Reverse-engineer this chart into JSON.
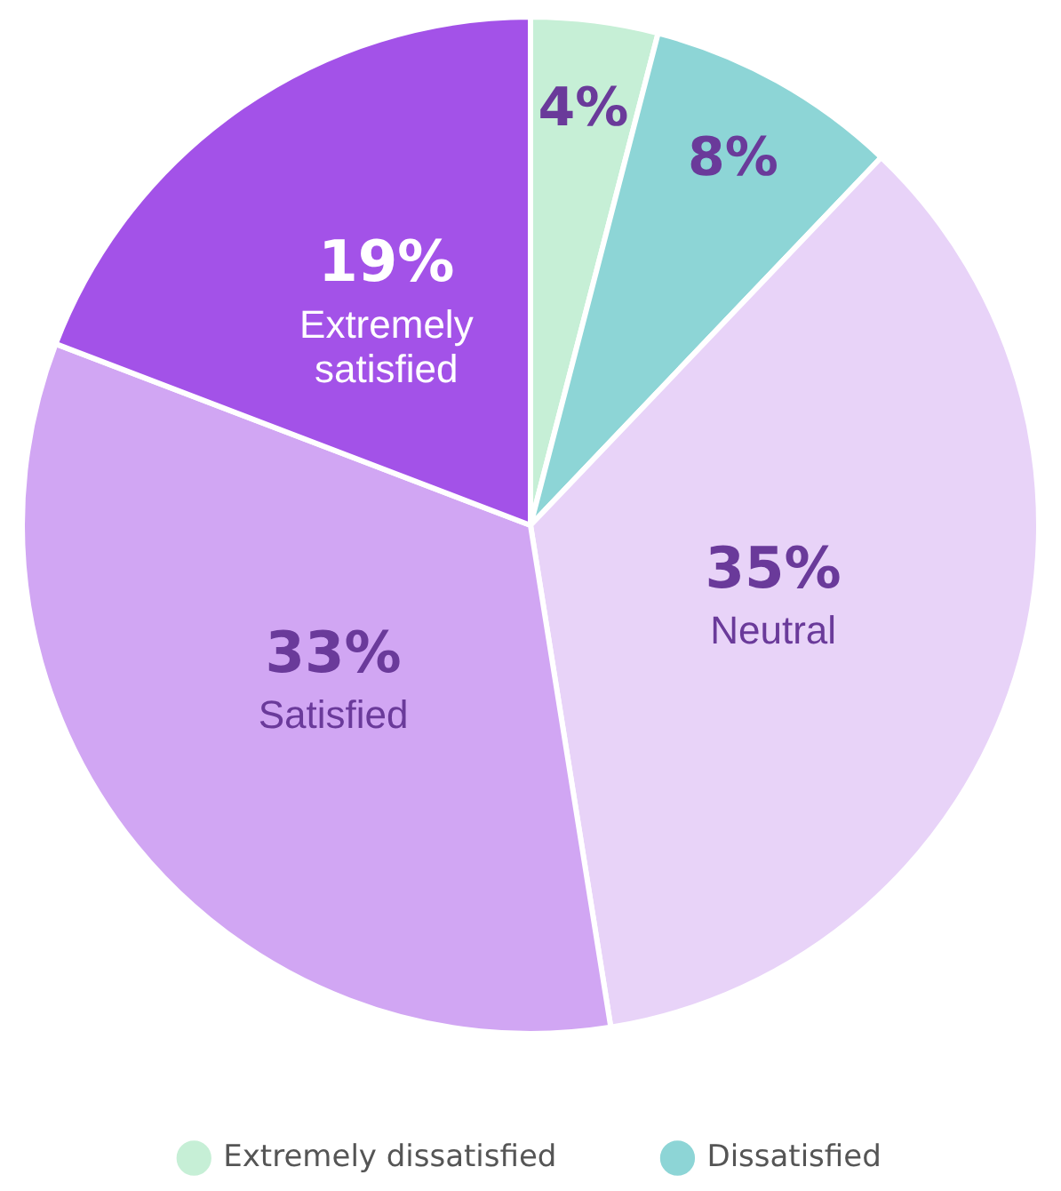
{
  "chart_data": {
    "type": "pie",
    "categories": [
      "Extremely dissatisfied",
      "Dissatisfied",
      "Neutral",
      "Satisfied",
      "Extremely satisfied"
    ],
    "values": [
      4,
      8,
      35,
      33,
      19
    ],
    "value_labels": [
      "4%",
      "8%",
      "35%",
      "33%",
      "19%"
    ],
    "colors": [
      "#c6efd6",
      "#8dd5d6",
      "#e8d3f8",
      "#d1a6f3",
      "#a352e8"
    ],
    "legend": "bottom"
  }
}
